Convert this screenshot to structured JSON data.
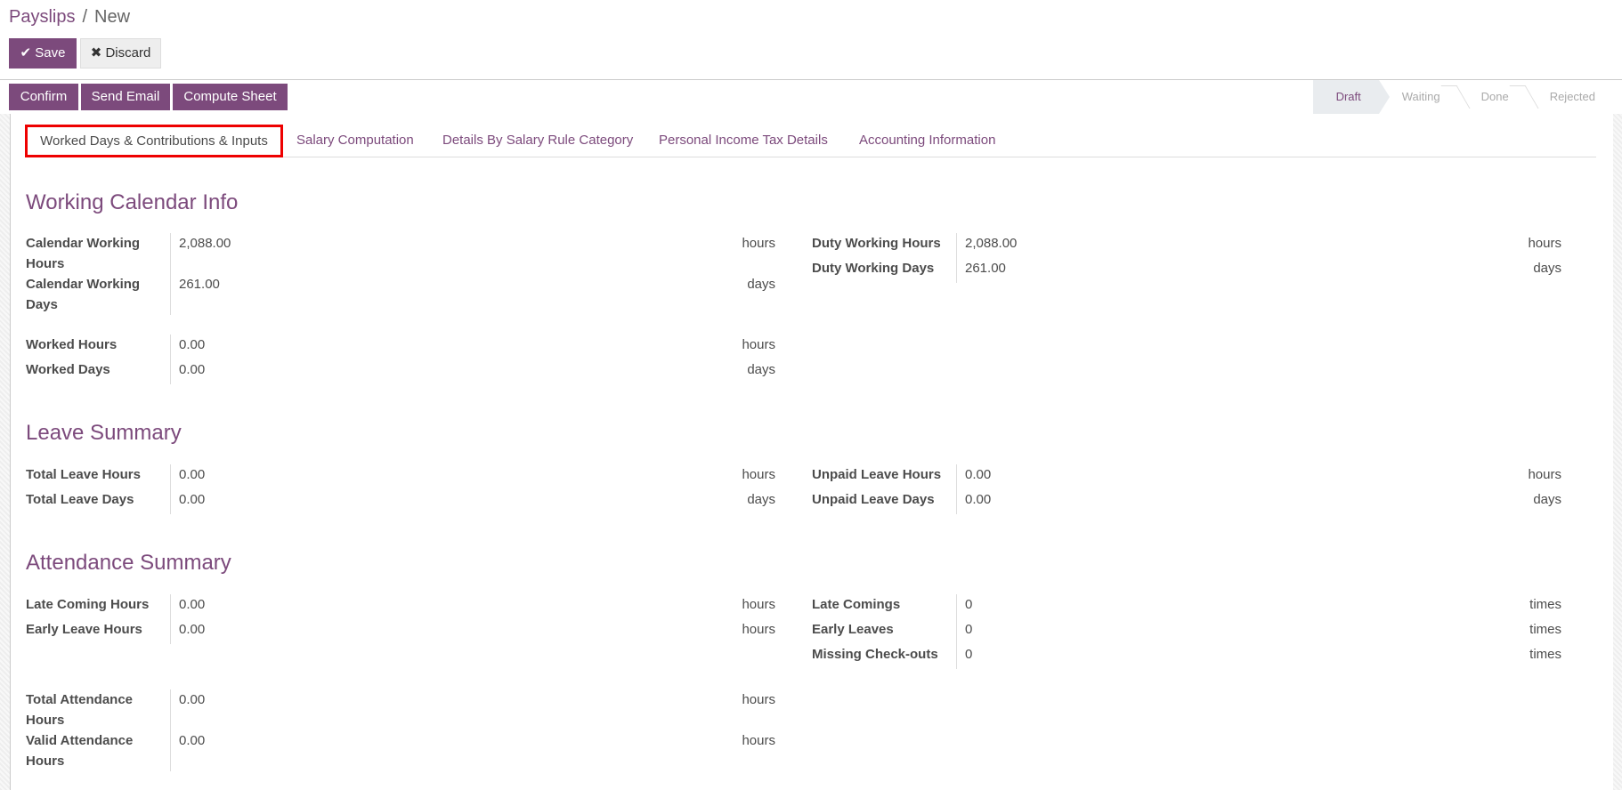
{
  "breadcrumb": {
    "parent": "Payslips",
    "separator": "/",
    "current": "New"
  },
  "toolbar": {
    "save": "Save",
    "discard": "Discard"
  },
  "actions": {
    "confirm": "Confirm",
    "send_email": "Send Email",
    "compute_sheet": "Compute Sheet"
  },
  "statusbar": {
    "stages": [
      "Draft",
      "Waiting",
      "Done",
      "Rejected"
    ],
    "active": "Draft"
  },
  "tabs": [
    "Worked Days & Contributions & Inputs",
    "Salary Computation",
    "Details By Salary Rule Category",
    "Personal Income Tax Details",
    "Accounting Information"
  ],
  "colors": {
    "brand": "#7c4a7c",
    "highlight": "#e00000"
  },
  "sections": {
    "working": {
      "title": "Working Calendar Info",
      "left1": [
        {
          "label": "Calendar Working Hours",
          "value": "2,088.00",
          "unit": "hours"
        },
        {
          "label": "Calendar Working Days",
          "value": "261.00",
          "unit": "days"
        }
      ],
      "right1": [
        {
          "label": "Duty Working Hours",
          "value": "2,088.00",
          "unit": "hours"
        },
        {
          "label": "Duty Working Days",
          "value": "261.00",
          "unit": "days"
        }
      ],
      "left2": [
        {
          "label": "Worked Hours",
          "value": "0.00",
          "unit": "hours"
        },
        {
          "label": "Worked Days",
          "value": "0.00",
          "unit": "days"
        }
      ]
    },
    "leave": {
      "title": "Leave Summary",
      "left": [
        {
          "label": "Total Leave Hours",
          "value": "0.00",
          "unit": "hours"
        },
        {
          "label": "Total Leave Days",
          "value": "0.00",
          "unit": "days"
        }
      ],
      "right": [
        {
          "label": "Unpaid Leave Hours",
          "value": "0.00",
          "unit": "hours"
        },
        {
          "label": "Unpaid Leave Days",
          "value": "0.00",
          "unit": "days"
        }
      ]
    },
    "attendance": {
      "title": "Attendance Summary",
      "left1": [
        {
          "label": "Late Coming Hours",
          "value": "0.00",
          "unit": "hours"
        },
        {
          "label": "Early Leave Hours",
          "value": "0.00",
          "unit": "hours"
        }
      ],
      "right": [
        {
          "label": "Late Comings",
          "value": "0",
          "unit": "times"
        },
        {
          "label": "Early Leaves",
          "value": "0",
          "unit": "times"
        },
        {
          "label": "Missing Check-outs",
          "value": "0",
          "unit": "times"
        }
      ],
      "left2": [
        {
          "label": "Total Attendance Hours",
          "value": "0.00",
          "unit": "hours"
        },
        {
          "label": "Valid Attendance Hours",
          "value": "0.00",
          "unit": "hours"
        }
      ]
    }
  }
}
